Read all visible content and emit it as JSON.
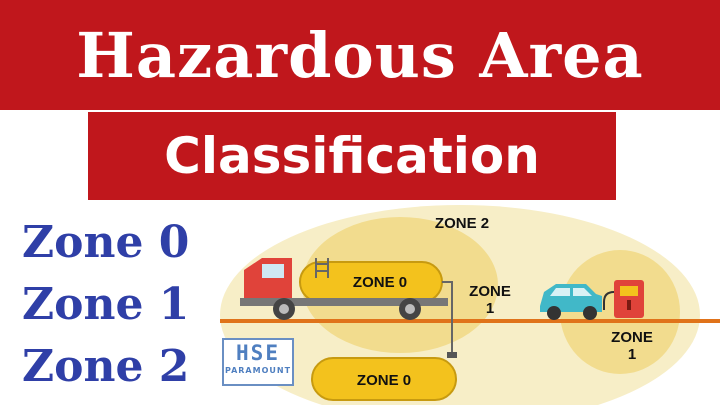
{
  "title": "Hazardous Area",
  "subtitle": "Classification",
  "zones_list": [
    "Zone 0",
    "Zone 1",
    "Zone 2"
  ],
  "diagram": {
    "zone2_label": "ZONE 2",
    "tank_truck_label": "ZONE 0",
    "zone1_left_label_a": "ZONE",
    "zone1_left_label_b": "1",
    "zone1_right_label_a": "ZONE",
    "zone1_right_label_b": "1",
    "underground_tank_label": "ZONE 0"
  },
  "logo": {
    "big": "HSE",
    "small": "PARAMOUNT"
  },
  "colors": {
    "banner_red": "#c0171c",
    "zone_text_blue": "#2f3fa7",
    "zone2_fill": "#f7eec7",
    "zone1_fill": "#f2dc8e",
    "tank_yellow": "#f3c21d",
    "truck_red": "#e0433a",
    "car_teal": "#41b8c8",
    "ground_orange": "#e0731a"
  },
  "icons": [
    "tanker-truck-icon",
    "car-icon",
    "fuel-pump-icon"
  ]
}
